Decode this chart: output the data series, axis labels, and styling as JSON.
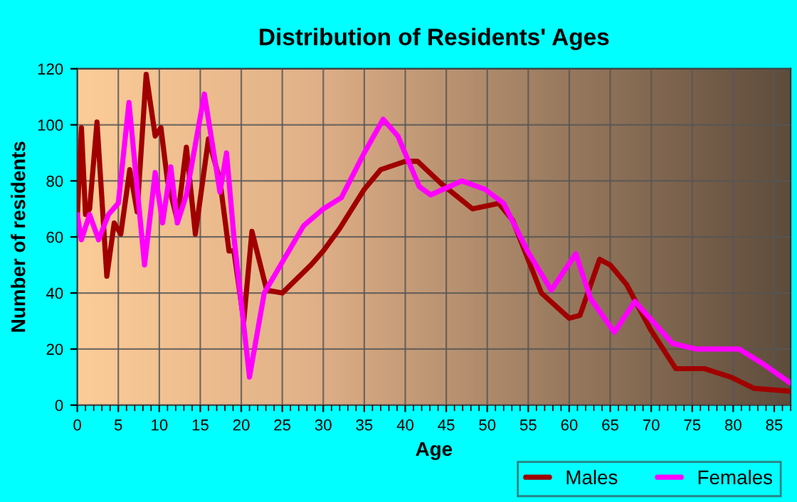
{
  "chart_data": {
    "type": "line",
    "title": "Distribution of Residents' Ages",
    "xlabel": "Age",
    "ylabel": "Number of residents",
    "xlim": [
      0,
      87
    ],
    "xticks": [
      0,
      5,
      10,
      15,
      20,
      25,
      30,
      35,
      40,
      45,
      50,
      55,
      60,
      65,
      70,
      75,
      80,
      85
    ],
    "ylim": [
      0,
      120
    ],
    "yticks": [
      0,
      20,
      40,
      60,
      80,
      100,
      120
    ],
    "grid": true,
    "legend": "bottom right",
    "line_style": "solid",
    "series": [
      {
        "name": "Males",
        "color": "#a00000",
        "x": [
          0,
          0.5,
          1,
          1.5,
          2.4,
          3.6,
          4.5,
          5.3,
          6.4,
          7.3,
          8.4,
          9.5,
          10.2,
          11,
          12.2,
          13.3,
          14.4,
          16,
          17.4,
          18.5,
          19.1,
          20.3,
          21.3,
          23.1,
          25,
          28.5,
          30,
          32,
          35,
          37,
          40,
          41.5,
          44.4,
          48.2,
          51.4,
          53.1,
          56.6,
          60,
          61.3,
          63.7,
          65,
          67,
          69.9,
          73,
          76.5,
          79.7,
          82.5,
          86.9
        ],
        "values": [
          67,
          99,
          68,
          70,
          101,
          46,
          65,
          61,
          84,
          69,
          118,
          96,
          99,
          80,
          66,
          92,
          61,
          95,
          80,
          55,
          55,
          30,
          62,
          41,
          40,
          50,
          55,
          63,
          77,
          84,
          87,
          87,
          79,
          70,
          72,
          66,
          40,
          31,
          32,
          52,
          50,
          43,
          27,
          13,
          13,
          10,
          6,
          5
        ]
      },
      {
        "name": "Females",
        "color": "#ff00ff",
        "x": [
          0,
          0.5,
          1.5,
          2.6,
          3.8,
          5,
          6.3,
          8.2,
          9.5,
          10.4,
          11.4,
          12.2,
          13.3,
          15.5,
          17.4,
          18.2,
          19.1,
          21,
          22.8,
          25.2,
          27.6,
          30,
          32.2,
          35,
          37.3,
          39.1,
          41.7,
          43.1,
          46.9,
          49.7,
          52,
          54.9,
          57.8,
          60.8,
          62.6,
          65.5,
          68,
          72.6,
          75.5,
          80.7,
          83.5,
          86.9
        ],
        "values": [
          68,
          59,
          68,
          59,
          68,
          72,
          108,
          50,
          83,
          65,
          85,
          65,
          75,
          111,
          76,
          90,
          60,
          10,
          40,
          52,
          64,
          70,
          74,
          90,
          102,
          96,
          78,
          75,
          80,
          77,
          72,
          55,
          41,
          54,
          38,
          26,
          37,
          22,
          20,
          20,
          15,
          8
        ]
      }
    ]
  }
}
